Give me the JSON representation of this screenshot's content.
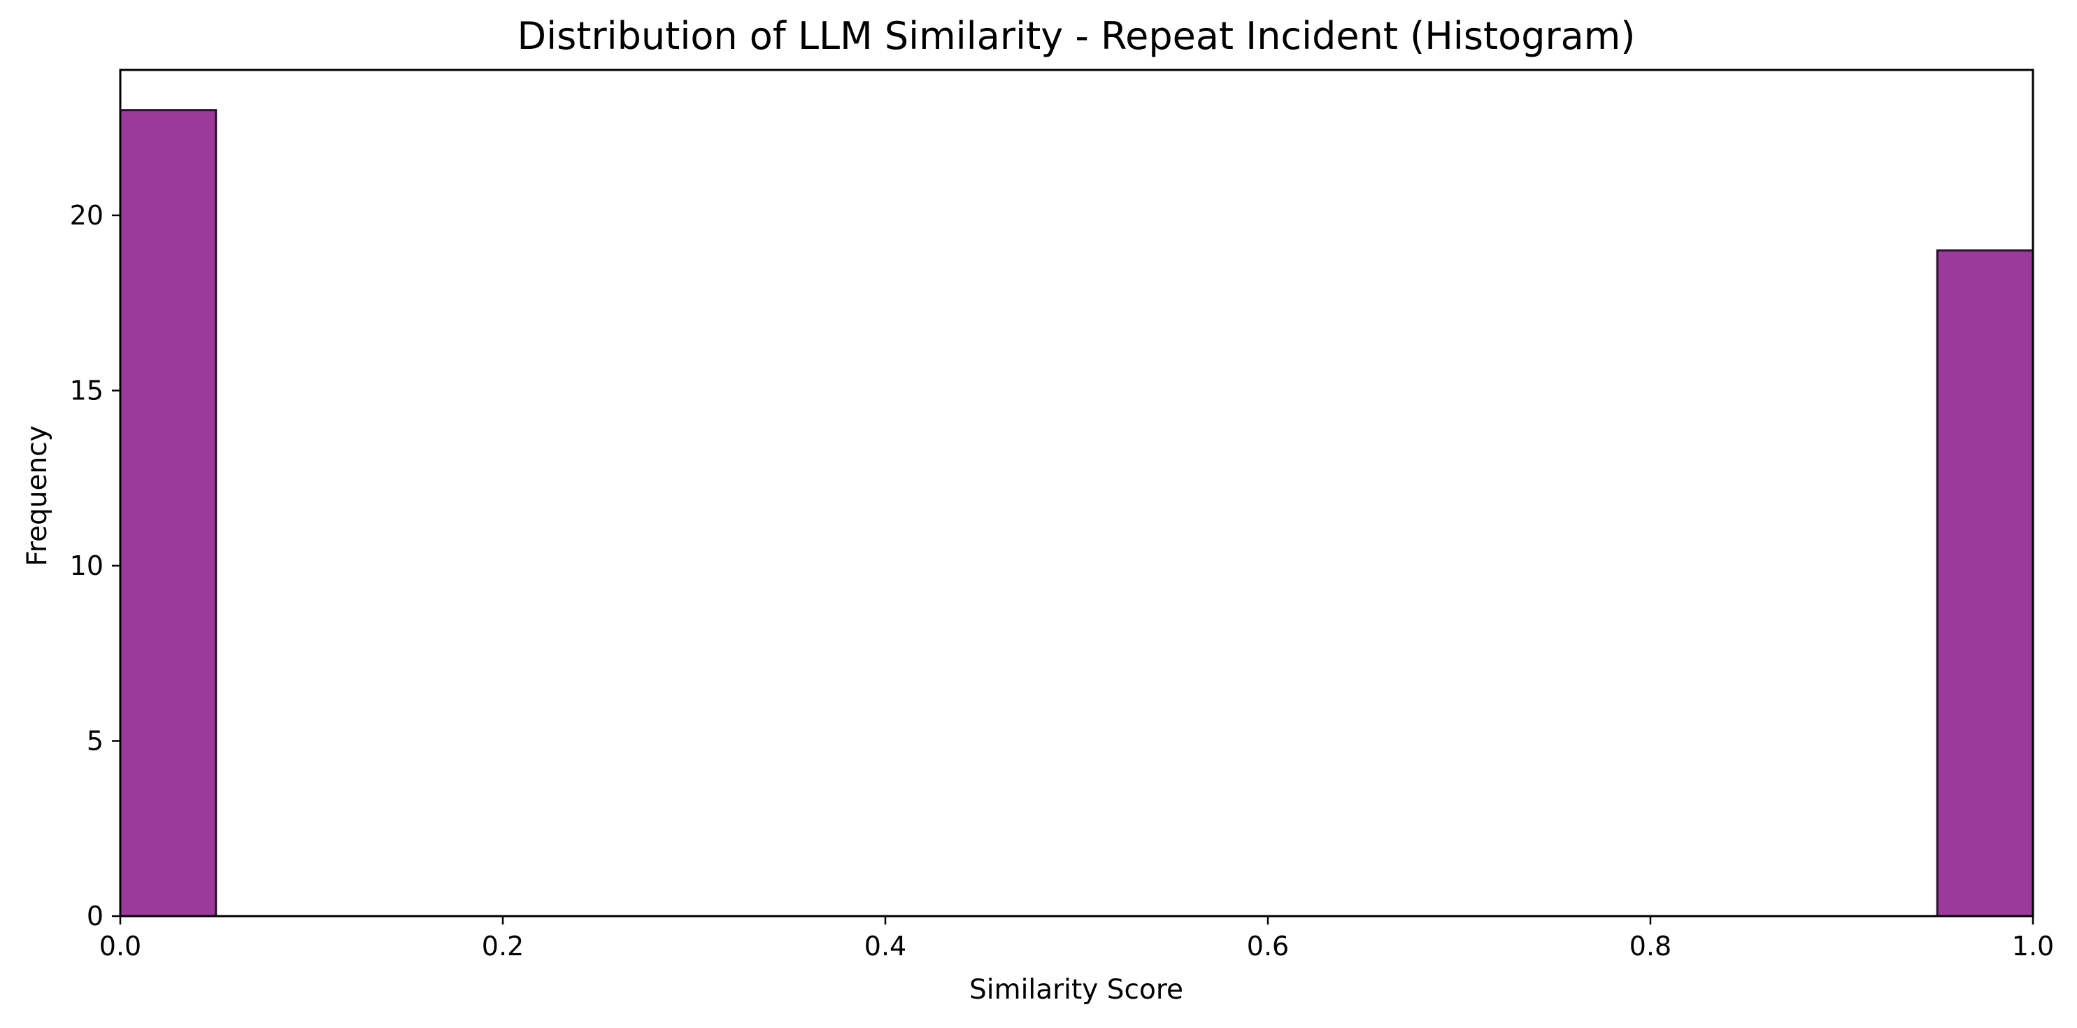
{
  "chart_data": {
    "type": "bar",
    "title": "Distribution of LLM Similarity - Repeat Incident (Histogram)",
    "xlabel": "Similarity Score",
    "ylabel": "Frequency",
    "xlim": [
      0.0,
      1.0
    ],
    "ylim": [
      0,
      24.15
    ],
    "xticks": [
      0.0,
      0.2,
      0.4,
      0.6,
      0.8,
      1.0
    ],
    "xtick_labels": [
      "0.0",
      "0.2",
      "0.4",
      "0.6",
      "0.8",
      "1.0"
    ],
    "yticks": [
      0,
      5,
      10,
      15,
      20
    ],
    "ytick_labels": [
      "0",
      "5",
      "10",
      "15",
      "20"
    ],
    "bin_width": 0.05,
    "bins": [
      {
        "x0": 0.0,
        "x1": 0.05,
        "count": 23
      },
      {
        "x0": 0.95,
        "x1": 1.0,
        "count": 19
      }
    ],
    "bar_color": "#9b3a9b",
    "edge_color": "#2b1030",
    "grid": false,
    "legend": false
  }
}
